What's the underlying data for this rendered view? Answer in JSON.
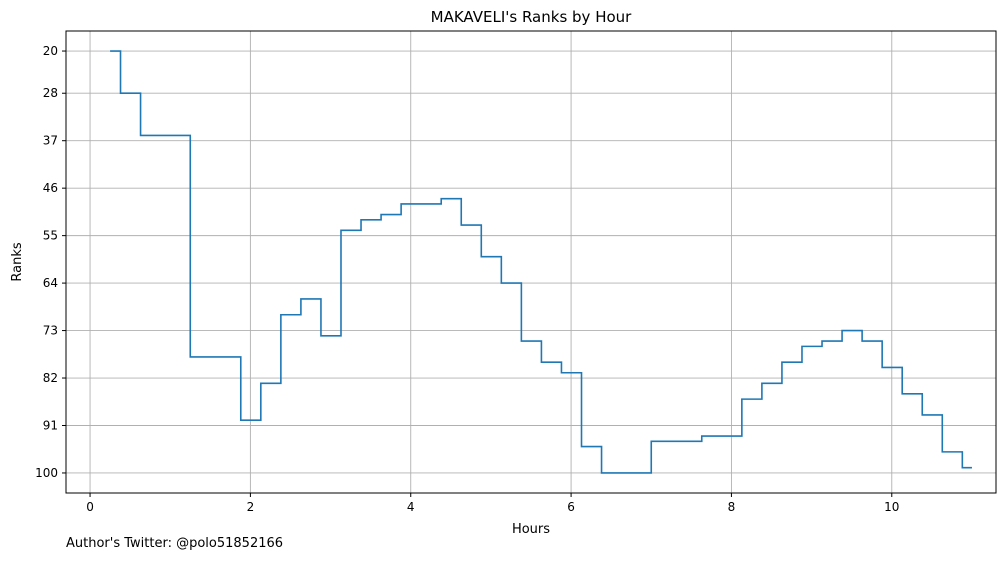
{
  "chart_data": {
    "type": "line",
    "step": "post",
    "title": "MAKAVELI's Ranks by Hour",
    "xlabel": "Hours",
    "ylabel": "Ranks",
    "xlim": [
      -0.3,
      11.3
    ],
    "ylim": [
      103.8,
      16.2
    ],
    "y_inverted": true,
    "grid": true,
    "x_ticks": [
      0,
      2,
      4,
      6,
      8,
      10
    ],
    "y_ticks": [
      20,
      28,
      37,
      46,
      55,
      64,
      73,
      82,
      91,
      100
    ],
    "line_color": "#1f77b4",
    "series": [
      {
        "x": [
          0.25,
          0.38,
          0.63,
          1.25,
          1.88,
          2.13,
          2.38,
          2.63,
          2.88,
          3.13,
          3.38,
          3.63,
          3.88,
          4.38,
          4.63,
          4.88,
          5.13,
          5.38,
          5.63,
          5.88,
          6.13,
          6.38,
          7.0,
          7.63,
          8.13,
          8.38,
          8.63,
          8.88,
          9.13,
          9.38,
          9.63,
          9.88,
          10.13,
          10.38,
          10.63,
          10.88,
          11.0
        ],
        "y": [
          20,
          28,
          36,
          78,
          90,
          83,
          70,
          67,
          74,
          54,
          52,
          51,
          49,
          48,
          53,
          59,
          64,
          75,
          79,
          81,
          95,
          100,
          94,
          93,
          86,
          83,
          79,
          76,
          75,
          73,
          75,
          80,
          85,
          89,
          96,
          99,
          99
        ]
      }
    ]
  },
  "footer": {
    "note": "Author's Twitter: @polo51852166"
  }
}
